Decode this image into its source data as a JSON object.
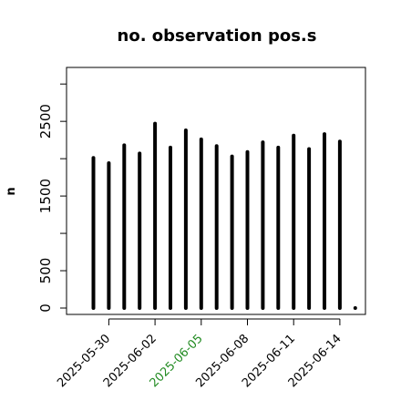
{
  "chart_data": {
    "type": "bar",
    "title": "no. observation pos.s",
    "xlabel": "",
    "ylabel": "n",
    "ylim": [
      0,
      3100
    ],
    "yticks": [
      0,
      500,
      1500,
      2500
    ],
    "x": [
      "2025-05-29",
      "2025-05-30",
      "2025-05-31",
      "2025-06-01",
      "2025-06-02",
      "2025-06-03",
      "2025-06-04",
      "2025-06-05",
      "2025-06-06",
      "2025-06-07",
      "2025-06-08",
      "2025-06-09",
      "2025-06-10",
      "2025-06-11",
      "2025-06-12",
      "2025-06-13",
      "2025-06-14",
      "2025-06-15"
    ],
    "values": [
      2010,
      1940,
      2180,
      2070,
      2470,
      2150,
      2380,
      2260,
      2170,
      2030,
      2090,
      2220,
      2150,
      2310,
      2130,
      2330,
      2230,
      0
    ],
    "xtick_labels": [
      {
        "label": "2025-05-30",
        "color": "#000000"
      },
      {
        "label": "2025-06-02",
        "color": "#000000"
      },
      {
        "label": "2025-06-05",
        "color": "#228B22"
      },
      {
        "label": "2025-06-08",
        "color": "#000000"
      },
      {
        "label": "2025-06-11",
        "color": "#000000"
      },
      {
        "label": "2025-06-14",
        "color": "#000000"
      }
    ],
    "bar_color": "#000000",
    "grid": false,
    "box": true
  }
}
